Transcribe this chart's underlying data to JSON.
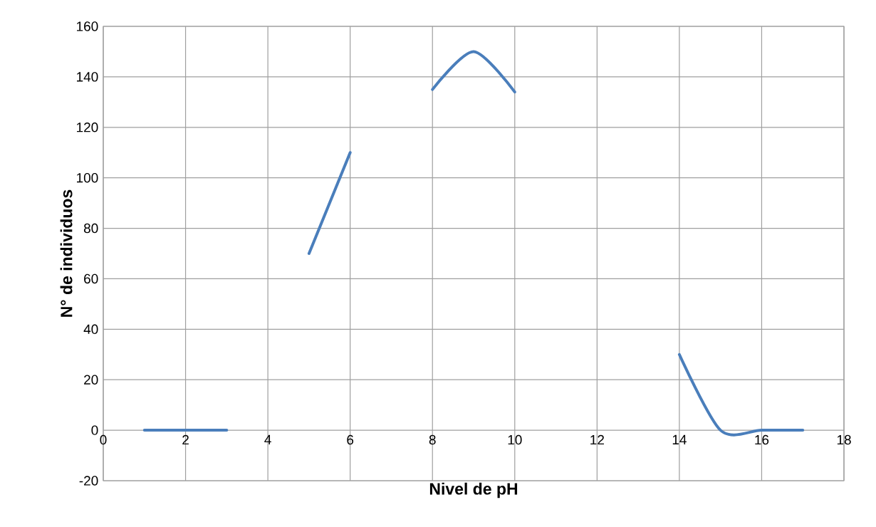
{
  "chart_data": {
    "type": "line",
    "xlabel": "Nivel de pH",
    "ylabel": "N° de individuos",
    "x": [
      1,
      2,
      3,
      4,
      5,
      6,
      7,
      8,
      9,
      10,
      11,
      12,
      13,
      14,
      15,
      16,
      17
    ],
    "series": [
      {
        "color": "#4a7ebb",
        "values": [
          0,
          0,
          0,
          null,
          70,
          110,
          null,
          135,
          150,
          134,
          null,
          null,
          null,
          30,
          0,
          0,
          0
        ]
      }
    ],
    "xlim": [
      0,
      18
    ],
    "xticks": [
      0,
      2,
      4,
      6,
      8,
      10,
      12,
      14,
      16,
      18
    ],
    "ylim": [
      -20,
      160
    ],
    "yticks": [
      -20,
      0,
      20,
      40,
      60,
      80,
      100,
      120,
      140,
      160
    ],
    "grid": true,
    "marker": "none",
    "line_style": "solid"
  }
}
